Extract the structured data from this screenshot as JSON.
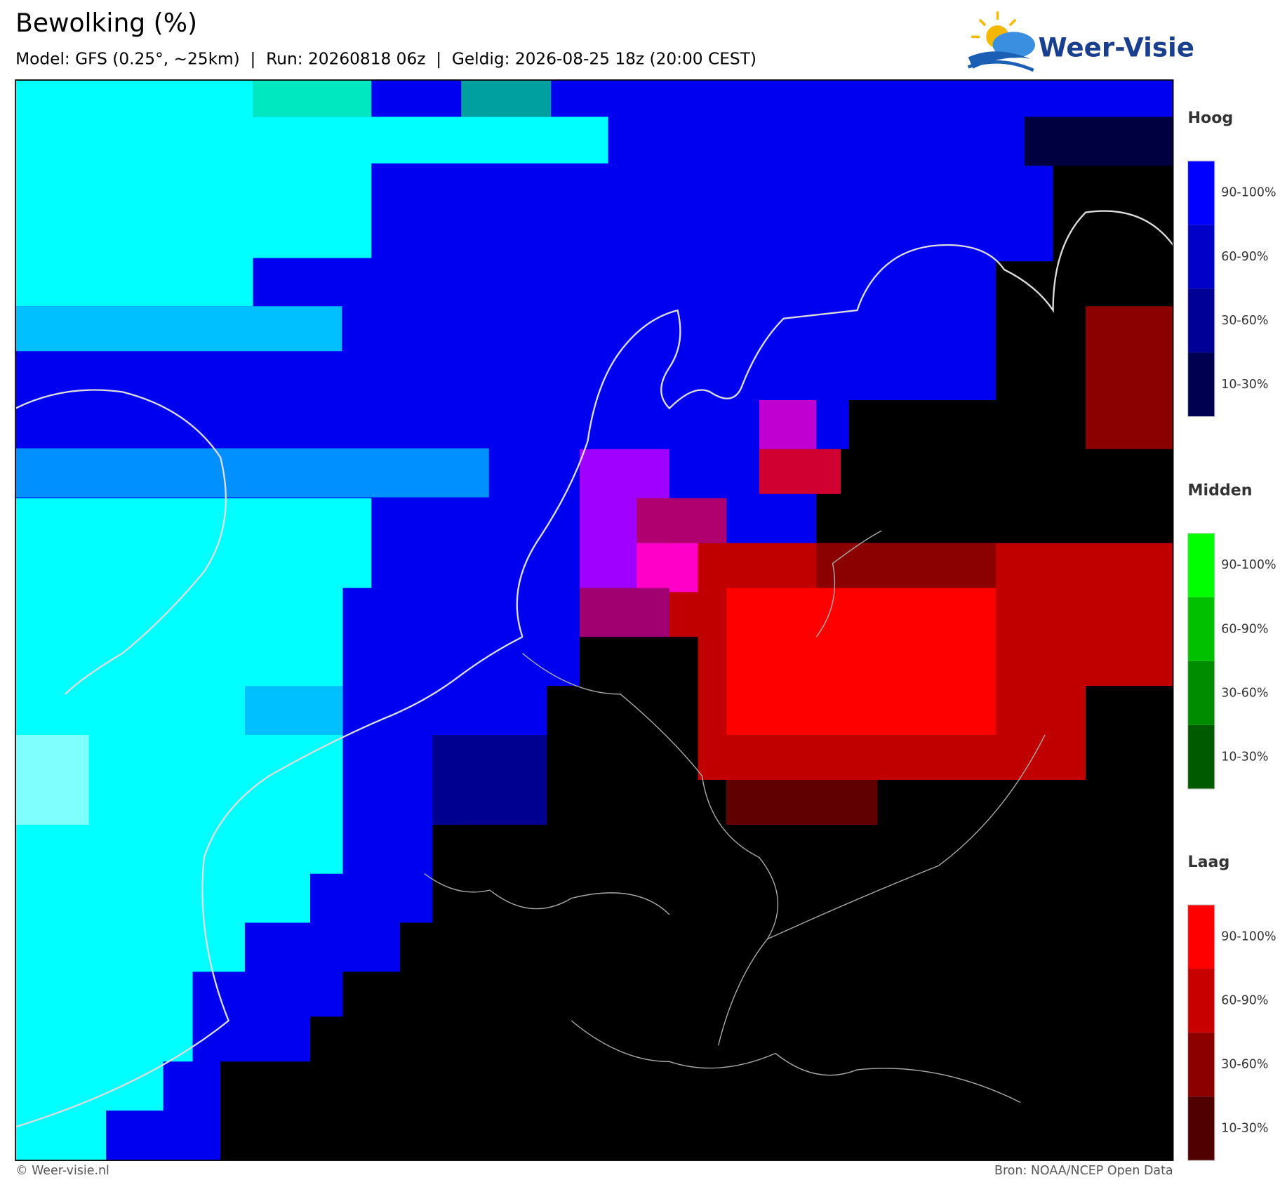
{
  "header": {
    "title": "Bewolking (%)",
    "subtitle": "Model: GFS (0.25°, ~25km)  |  Run: 20260818 06z  |  Geldig: 2026-08-25 18z (20:00 CEST)",
    "logo": "Weer-Visie"
  },
  "legends": [
    {
      "title": "Hoog",
      "labels": [
        "90-100%",
        "60-90%",
        "30-60%",
        "10-30%"
      ]
    },
    {
      "title": "Midden",
      "labels": [
        "90-100%",
        "60-90%",
        "30-60%",
        "10-30%"
      ]
    },
    {
      "title": "Laag",
      "labels": [
        "90-100%",
        "60-90%",
        "30-60%",
        "10-30%"
      ]
    }
  ],
  "footer": {
    "copyright": "© Weer-visie.nl",
    "source": "Bron: NOAA/NCEP Open Data"
  }
}
